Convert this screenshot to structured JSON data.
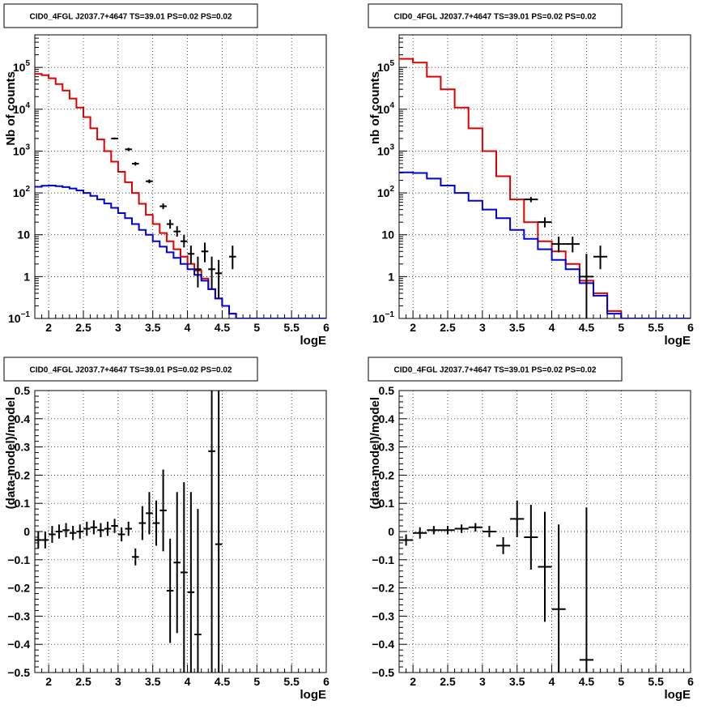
{
  "chart_data": [
    {
      "type": "line",
      "title": "CID0_4FGL J2037.7+4647 TS=39.01 PS=0.02 PS=0.02",
      "xlabel": "logE",
      "ylabel": "Nb of counts",
      "xlim": [
        1.8,
        6.0
      ],
      "ylim": [
        0.1,
        600000
      ],
      "yscale": "log",
      "grid": true,
      "xticks": [
        "2",
        "2.5",
        "3",
        "3.5",
        "4",
        "4.5",
        "5",
        "5.5",
        "6"
      ],
      "yticks": [
        {
          "base": "10",
          "exp": "−1",
          "value": 0.1
        },
        {
          "base": "1",
          "exp": "",
          "value": 1
        },
        {
          "base": "10",
          "exp": "",
          "value": 10
        },
        {
          "base": "10",
          "exp": "2",
          "value": 100
        },
        {
          "base": "10",
          "exp": "3",
          "value": 1000
        },
        {
          "base": "10",
          "exp": "4",
          "value": 10000
        },
        {
          "base": "10",
          "exp": "5",
          "value": 100000
        }
      ],
      "bins": {
        "start": 1.8,
        "width": 0.1
      },
      "series": [
        {
          "color": "#e00000",
          "style": "step",
          "values": [
            70000,
            65000,
            55000,
            40000,
            28000,
            18000,
            11000,
            6500,
            3500,
            1900,
            1000,
            560,
            320,
            180,
            100,
            55,
            30,
            18,
            11,
            7,
            4.5,
            3,
            2,
            1.4,
            0.9,
            0.5,
            0.3,
            0.2,
            0.13,
            0.1,
            0.1,
            0.1,
            0.1,
            0.1,
            0.1,
            0.1,
            0.1,
            0.1,
            0.1,
            0.1,
            0.1,
            0.1
          ]
        },
        {
          "color": "#0000dd",
          "style": "step",
          "values": [
            140,
            148,
            150,
            145,
            138,
            128,
            115,
            100,
            85,
            70,
            56,
            44,
            33,
            25,
            18,
            13,
            10,
            7,
            5.2,
            3.8,
            2.8,
            2,
            1.5,
            1.1,
            0.8,
            0.5,
            0.3,
            0.2,
            0.13,
            0.1,
            0.1,
            0.1,
            0.1,
            0.1,
            0.1,
            0.1,
            0.1,
            0.1,
            0.1,
            0.1,
            0.1,
            0.1
          ]
        },
        {
          "color": "#000000",
          "style": "points",
          "points": [
            {
              "x": 2.95,
              "y": 2000,
              "lo": 1900,
              "hi": 2100,
              "xerr": 0.05
            },
            {
              "x": 3.15,
              "y": 1100,
              "lo": 1000,
              "hi": 1200,
              "xerr": 0.05
            },
            {
              "x": 3.25,
              "y": 500,
              "lo": 450,
              "hi": 550,
              "xerr": 0.05
            },
            {
              "x": 3.45,
              "y": 190,
              "lo": 170,
              "hi": 210,
              "xerr": 0.05
            },
            {
              "x": 3.65,
              "y": 48,
              "lo": 41,
              "hi": 56,
              "xerr": 0.05
            },
            {
              "x": 3.75,
              "y": 18,
              "lo": 14,
              "hi": 23,
              "xerr": 0.05
            },
            {
              "x": 3.85,
              "y": 12,
              "lo": 9,
              "hi": 16,
              "xerr": 0.05
            },
            {
              "x": 3.95,
              "y": 7,
              "lo": 5,
              "hi": 10,
              "xerr": 0.05
            },
            {
              "x": 4.05,
              "y": 3.5,
              "lo": 2,
              "hi": 5.5,
              "xerr": 0.05
            },
            {
              "x": 4.15,
              "y": 1.5,
              "lo": 0.55,
              "hi": 3,
              "xerr": 0.05
            },
            {
              "x": 4.25,
              "y": 4,
              "lo": 2.2,
              "hi": 6.5,
              "xerr": 0.05
            },
            {
              "x": 4.35,
              "y": 1.5,
              "lo": 0.5,
              "hi": 3,
              "xerr": 0.05
            },
            {
              "x": 4.45,
              "y": 1.2,
              "lo": 0.3,
              "hi": 2.5,
              "xerr": 0.05
            },
            {
              "x": 4.65,
              "y": 3,
              "lo": 1.5,
              "hi": 5.5,
              "xerr": 0.05
            }
          ]
        }
      ]
    },
    {
      "type": "line",
      "title": "CID0_4FGL J2037.7+4647 TS=39.01 PS=0.02 PS=0.02",
      "xlabel": "logE",
      "ylabel": "nb of counts",
      "xlim": [
        1.8,
        6.0
      ],
      "ylim": [
        0.1,
        600000
      ],
      "yscale": "log",
      "grid": true,
      "xticks": [
        "2",
        "2.5",
        "3",
        "3.5",
        "4",
        "4.5",
        "5",
        "5.5",
        "6"
      ],
      "yticks": [
        {
          "base": "10",
          "exp": "−1",
          "value": 0.1
        },
        {
          "base": "1",
          "exp": "",
          "value": 1
        },
        {
          "base": "10",
          "exp": "",
          "value": 10
        },
        {
          "base": "10",
          "exp": "2",
          "value": 100
        },
        {
          "base": "10",
          "exp": "3",
          "value": 1000
        },
        {
          "base": "10",
          "exp": "4",
          "value": 10000
        },
        {
          "base": "10",
          "exp": "5",
          "value": 100000
        }
      ],
      "bins": {
        "start": 1.8,
        "width": 0.2
      },
      "series": [
        {
          "color": "#e00000",
          "style": "step",
          "values": [
            160000,
            130000,
            60000,
            30000,
            11000,
            3500,
            1000,
            250,
            70,
            20,
            7,
            4,
            2,
            0.8,
            0.4,
            0.15,
            0.1,
            0.1,
            0.1,
            0.1,
            0.1
          ]
        },
        {
          "color": "#0000dd",
          "style": "step",
          "values": [
            310,
            300,
            220,
            150,
            100,
            65,
            40,
            25,
            13,
            8,
            4.5,
            2.5,
            1.5,
            0.7,
            0.35,
            0.13,
            0.1,
            0.1,
            0.1,
            0.1,
            0.1
          ]
        },
        {
          "color": "#000000",
          "style": "points",
          "points": [
            {
              "x": 3.7,
              "y": 70,
              "lo": 60,
              "hi": 80,
              "xerr": 0.1
            },
            {
              "x": 3.9,
              "y": 20,
              "lo": 15,
              "hi": 26,
              "xerr": 0.1
            },
            {
              "x": 4.1,
              "y": 6,
              "lo": 3.8,
              "hi": 9,
              "xerr": 0.1
            },
            {
              "x": 4.3,
              "y": 6,
              "lo": 3.8,
              "hi": 9,
              "xerr": 0.1
            },
            {
              "x": 4.5,
              "y": 1,
              "lo": 0.1,
              "hi": 3.5,
              "xerr": 0.1
            },
            {
              "x": 4.7,
              "y": 3,
              "lo": 1.5,
              "hi": 5.5,
              "xerr": 0.1
            }
          ]
        }
      ]
    },
    {
      "type": "scatter",
      "title": "CID0_4FGL J2037.7+4647 TS=39.01 PS=0.02 PS=0.02",
      "xlabel": "logE",
      "ylabel": "(data-model)/model",
      "xlim": [
        1.8,
        6.0
      ],
      "ylim": [
        -0.5,
        0.5
      ],
      "yscale": "linear",
      "grid": true,
      "xticks": [
        "2",
        "2.5",
        "3",
        "3.5",
        "4",
        "4.5",
        "5",
        "5.5",
        "6"
      ],
      "yticks": [
        "−0.5",
        "−0.4",
        "−0.3",
        "−0.2",
        "−0.1",
        "0",
        "0.1",
        "0.2",
        "0.3",
        "0.4",
        "0.5"
      ],
      "series": [
        {
          "color": "#000000",
          "style": "points",
          "points": [
            {
              "x": 1.85,
              "y": -0.03,
              "lo": -0.06,
              "hi": 0.0,
              "xerr": 0.05
            },
            {
              "x": 1.95,
              "y": -0.03,
              "lo": -0.06,
              "hi": 0.0,
              "xerr": 0.05
            },
            {
              "x": 2.05,
              "y": -0.01,
              "lo": -0.04,
              "hi": 0.02,
              "xerr": 0.05
            },
            {
              "x": 2.15,
              "y": 0.0,
              "lo": -0.025,
              "hi": 0.025,
              "xerr": 0.05
            },
            {
              "x": 2.25,
              "y": 0.005,
              "lo": -0.02,
              "hi": 0.03,
              "xerr": 0.05
            },
            {
              "x": 2.35,
              "y": -0.005,
              "lo": -0.03,
              "hi": 0.02,
              "xerr": 0.05
            },
            {
              "x": 2.45,
              "y": 0.0,
              "lo": -0.025,
              "hi": 0.025,
              "xerr": 0.05
            },
            {
              "x": 2.55,
              "y": 0.01,
              "lo": -0.015,
              "hi": 0.035,
              "xerr": 0.05
            },
            {
              "x": 2.65,
              "y": 0.015,
              "lo": -0.01,
              "hi": 0.04,
              "xerr": 0.05
            },
            {
              "x": 2.75,
              "y": 0.005,
              "lo": -0.02,
              "hi": 0.03,
              "xerr": 0.05
            },
            {
              "x": 2.85,
              "y": 0.01,
              "lo": -0.015,
              "hi": 0.035,
              "xerr": 0.05
            },
            {
              "x": 2.95,
              "y": 0.02,
              "lo": -0.005,
              "hi": 0.045,
              "xerr": 0.05
            },
            {
              "x": 3.05,
              "y": -0.01,
              "lo": -0.035,
              "hi": 0.015,
              "xerr": 0.05
            },
            {
              "x": 3.15,
              "y": 0.01,
              "lo": -0.015,
              "hi": 0.035,
              "xerr": 0.05
            },
            {
              "x": 3.25,
              "y": -0.09,
              "lo": -0.12,
              "hi": -0.06,
              "xerr": 0.05
            },
            {
              "x": 3.35,
              "y": 0.03,
              "lo": -0.03,
              "hi": 0.09,
              "xerr": 0.05
            },
            {
              "x": 3.45,
              "y": 0.065,
              "lo": -0.01,
              "hi": 0.14,
              "xerr": 0.05
            },
            {
              "x": 3.55,
              "y": 0.03,
              "lo": -0.05,
              "hi": 0.11,
              "xerr": 0.05
            },
            {
              "x": 3.65,
              "y": 0.075,
              "lo": -0.07,
              "hi": 0.22,
              "xerr": 0.05
            },
            {
              "x": 3.75,
              "y": -0.21,
              "lo": -0.395,
              "hi": -0.025,
              "xerr": 0.05
            },
            {
              "x": 3.85,
              "y": -0.11,
              "lo": -0.36,
              "hi": 0.14,
              "xerr": 0.05
            },
            {
              "x": 3.95,
              "y": -0.145,
              "lo": -0.5,
              "hi": 0.175,
              "xerr": 0.05
            },
            {
              "x": 4.05,
              "y": -0.215,
              "lo": -0.5,
              "hi": 0.14,
              "xerr": 0.05
            },
            {
              "x": 4.15,
              "y": -0.365,
              "lo": -0.5,
              "hi": 0.08,
              "xerr": 0.05
            },
            {
              "x": 4.35,
              "y": 0.285,
              "lo": -0.5,
              "hi": 0.5,
              "xerr": 0.05
            },
            {
              "x": 4.45,
              "y": -0.045,
              "lo": -0.5,
              "hi": 0.5,
              "xerr": 0.05
            }
          ]
        }
      ]
    },
    {
      "type": "scatter",
      "title": "CID0_4FGL J2037.7+4647 TS=39.01 PS=0.02 PS=0.02",
      "xlabel": "logE",
      "ylabel": "(data-model)/model",
      "xlim": [
        1.8,
        6.0
      ],
      "ylim": [
        -0.5,
        0.5
      ],
      "yscale": "linear",
      "grid": true,
      "xticks": [
        "2",
        "2.5",
        "3",
        "3.5",
        "4",
        "4.5",
        "5",
        "5.5",
        "6"
      ],
      "yticks": [
        "−0.5",
        "−0.4",
        "−0.3",
        "−0.2",
        "−0.1",
        "0",
        "0.1",
        "0.2",
        "0.3",
        "0.4",
        "0.5"
      ],
      "series": [
        {
          "color": "#000000",
          "style": "points",
          "points": [
            {
              "x": 1.9,
              "y": -0.03,
              "lo": -0.05,
              "hi": -0.01,
              "xerr": 0.1
            },
            {
              "x": 2.1,
              "y": -0.005,
              "lo": -0.025,
              "hi": 0.015,
              "xerr": 0.1
            },
            {
              "x": 2.3,
              "y": 0.005,
              "lo": -0.01,
              "hi": 0.02,
              "xerr": 0.1
            },
            {
              "x": 2.5,
              "y": 0.005,
              "lo": -0.01,
              "hi": 0.02,
              "xerr": 0.1
            },
            {
              "x": 2.7,
              "y": 0.01,
              "lo": -0.005,
              "hi": 0.025,
              "xerr": 0.1
            },
            {
              "x": 2.9,
              "y": 0.015,
              "lo": 0.0,
              "hi": 0.03,
              "xerr": 0.1
            },
            {
              "x": 3.1,
              "y": 0.0,
              "lo": -0.02,
              "hi": 0.02,
              "xerr": 0.1
            },
            {
              "x": 3.3,
              "y": -0.05,
              "lo": -0.08,
              "hi": -0.02,
              "xerr": 0.1
            },
            {
              "x": 3.5,
              "y": 0.045,
              "lo": -0.02,
              "hi": 0.11,
              "xerr": 0.1
            },
            {
              "x": 3.7,
              "y": -0.02,
              "lo": -0.135,
              "hi": 0.095,
              "xerr": 0.1
            },
            {
              "x": 3.9,
              "y": -0.125,
              "lo": -0.32,
              "hi": 0.07,
              "xerr": 0.1
            },
            {
              "x": 4.1,
              "y": -0.275,
              "lo": -0.5,
              "hi": 0.025,
              "xerr": 0.1
            },
            {
              "x": 4.5,
              "y": -0.455,
              "lo": -0.5,
              "hi": 0.085,
              "xerr": 0.1
            }
          ]
        }
      ]
    }
  ]
}
